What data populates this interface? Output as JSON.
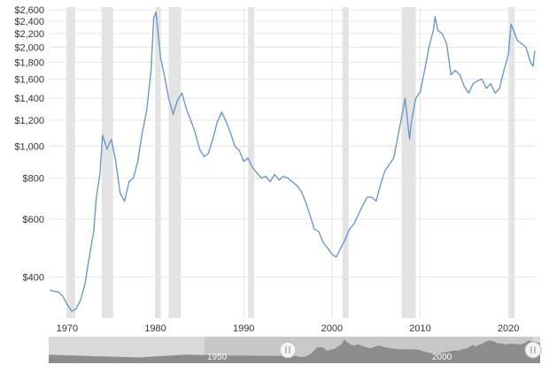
{
  "chart_data": {
    "type": "line",
    "title": "",
    "xlabel": "",
    "ylabel": "",
    "y_scale": "log",
    "ylim": [
      300,
      2650
    ],
    "xlim": [
      1968,
      2023
    ],
    "yticks": [
      {
        "value": 400,
        "label": "$400"
      },
      {
        "value": 600,
        "label": "$600"
      },
      {
        "value": 800,
        "label": "$800"
      },
      {
        "value": 1000,
        "label": "$1,000"
      },
      {
        "value": 1200,
        "label": "$1,200"
      },
      {
        "value": 1400,
        "label": "$1,400"
      },
      {
        "value": 1600,
        "label": "$1,600"
      },
      {
        "value": 1800,
        "label": "$1,800"
      },
      {
        "value": 2000,
        "label": "$2,000"
      },
      {
        "value": 2200,
        "label": "$2,200"
      },
      {
        "value": 2400,
        "label": "$2,400"
      },
      {
        "value": 2600,
        "label": "$2,600"
      }
    ],
    "xticks": [
      {
        "value": 1970,
        "label": "1970"
      },
      {
        "value": 1980,
        "label": "1980"
      },
      {
        "value": 1990,
        "label": "1990"
      },
      {
        "value": 2000,
        "label": "2000"
      },
      {
        "value": 2010,
        "label": "2010"
      },
      {
        "value": 2020,
        "label": "2020"
      }
    ],
    "recessions": [
      [
        1969.9,
        1970.9
      ],
      [
        1973.9,
        1975.2
      ],
      [
        1980.0,
        1980.5
      ],
      [
        1981.5,
        1982.9
      ],
      [
        1990.5,
        1991.2
      ],
      [
        2001.2,
        2001.9
      ],
      [
        2007.9,
        2009.5
      ],
      [
        2020.1,
        2020.4
      ]
    ],
    "grid": true,
    "series": [
      {
        "color": "#6a9acb",
        "x": [
          1968.0,
          1968.5,
          1969.0,
          1969.5,
          1970.0,
          1970.5,
          1971.0,
          1971.5,
          1972.0,
          1972.5,
          1973.0,
          1973.3,
          1973.7,
          1974.0,
          1974.5,
          1975.0,
          1975.5,
          1976.0,
          1976.5,
          1977.0,
          1977.5,
          1978.0,
          1978.5,
          1979.0,
          1979.5,
          1979.8,
          1980.05,
          1980.3,
          1980.6,
          1981.0,
          1981.5,
          1982.0,
          1982.5,
          1983.0,
          1983.5,
          1984.0,
          1984.5,
          1985.0,
          1985.5,
          1986.0,
          1986.5,
          1987.0,
          1987.5,
          1988.0,
          1988.5,
          1989.0,
          1989.5,
          1990.0,
          1990.5,
          1991.0,
          1991.5,
          1992.0,
          1992.5,
          1993.0,
          1993.5,
          1994.0,
          1994.5,
          1995.0,
          1995.5,
          1996.0,
          1996.5,
          1997.0,
          1997.5,
          1998.0,
          1998.5,
          1999.0,
          1999.5,
          2000.0,
          2000.5,
          2001.0,
          2001.5,
          2002.0,
          2002.5,
          2003.0,
          2003.5,
          2004.0,
          2004.5,
          2005.0,
          2005.5,
          2006.0,
          2006.5,
          2007.0,
          2007.5,
          2008.0,
          2008.3,
          2008.8,
          2009.0,
          2009.5,
          2010.0,
          2010.5,
          2011.0,
          2011.5,
          2011.7,
          2012.0,
          2012.5,
          2013.0,
          2013.5,
          2014.0,
          2014.5,
          2015.0,
          2015.5,
          2016.0,
          2016.5,
          2017.0,
          2017.5,
          2018.0,
          2018.5,
          2019.0,
          2019.5,
          2020.0,
          2020.3,
          2020.6,
          2021.0,
          2021.5,
          2022.0,
          2022.5,
          2022.8,
          2023.0
        ],
        "y": [
          365,
          362,
          360,
          350,
          330,
          315,
          320,
          340,
          380,
          460,
          550,
          700,
          820,
          1080,
          980,
          1050,
          900,
          720,
          680,
          780,
          800,
          900,
          1100,
          1280,
          1700,
          2450,
          2560,
          2200,
          1850,
          1650,
          1400,
          1250,
          1380,
          1450,
          1300,
          1200,
          1100,
          980,
          930,
          950,
          1050,
          1180,
          1270,
          1190,
          1100,
          1000,
          970,
          900,
          920,
          860,
          830,
          800,
          810,
          780,
          820,
          790,
          810,
          800,
          780,
          760,
          730,
          680,
          620,
          560,
          550,
          510,
          490,
          470,
          460,
          490,
          520,
          560,
          580,
          620,
          660,
          700,
          700,
          680,
          760,
          840,
          880,
          920,
          1080,
          1260,
          1400,
          1050,
          1180,
          1400,
          1460,
          1700,
          2000,
          2250,
          2480,
          2250,
          2200,
          2050,
          1650,
          1700,
          1650,
          1520,
          1450,
          1550,
          1580,
          1600,
          1500,
          1550,
          1450,
          1500,
          1700,
          1900,
          2350,
          2250,
          2100,
          2050,
          2000,
          1800,
          1750,
          1950
        ]
      }
    ]
  },
  "navigator": {
    "label_left": "1950",
    "label_right": "2000"
  }
}
